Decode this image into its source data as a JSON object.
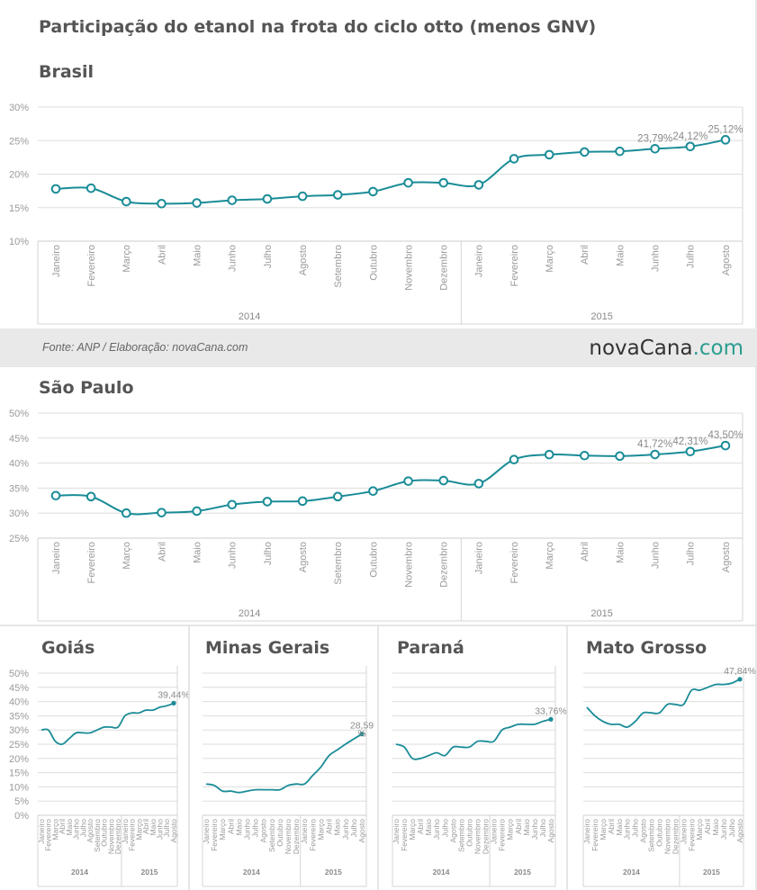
{
  "title": "Participação do etanol na frota do ciclo otto (menos GNV)",
  "source": "Fonte: ANP / Elaboração: novaCana.com",
  "logo": {
    "main": "novaCana",
    "suffix": ".com"
  },
  "colors": {
    "line": "#1a8c97",
    "grid": "#dddddd",
    "band": "#e9e9e9",
    "text": "#555555"
  },
  "chart_data": [
    {
      "type": "line",
      "title": "Brasil",
      "months": [
        "Janeiro",
        "Fevereiro",
        "Março",
        "Abril",
        "Maio",
        "Junho",
        "Julho",
        "Agosto",
        "Setembro",
        "Outubro",
        "Novembro",
        "Dezembro",
        "Janeiro",
        "Fevereiro",
        "Março",
        "Abril",
        "Maio",
        "Junho",
        "Julho",
        "Agosto"
      ],
      "years": [
        "2014",
        "2015"
      ],
      "values": [
        17.8,
        17.9,
        15.9,
        15.6,
        15.7,
        16.1,
        16.3,
        16.7,
        16.9,
        17.4,
        18.7,
        18.7,
        18.4,
        22.3,
        22.9,
        23.3,
        23.4,
        23.79,
        24.12,
        25.12
      ],
      "labels": {
        "17": "23,79%",
        "18": "24,12%",
        "19": "25,12%"
      },
      "yticks": [
        10,
        15,
        20,
        25,
        30
      ],
      "ytick_labels": [
        "10%",
        "15%",
        "20%",
        "25%",
        "30%"
      ],
      "ylim": [
        10,
        30
      ]
    },
    {
      "type": "line",
      "title": "São Paulo",
      "months": [
        "Janeiro",
        "Fevereiro",
        "Março",
        "Abril",
        "Maio",
        "Junho",
        "Julho",
        "Agosto",
        "Setembro",
        "Outubro",
        "Novembro",
        "Dezembro",
        "Janeiro",
        "Fevereiro",
        "Março",
        "Abril",
        "Maio",
        "Junho",
        "Julho",
        "Agosto"
      ],
      "years": [
        "2014",
        "2015"
      ],
      "values": [
        33.5,
        33.3,
        30.0,
        30.1,
        30.4,
        31.7,
        32.3,
        32.4,
        33.3,
        34.4,
        36.4,
        36.5,
        35.9,
        40.7,
        41.7,
        41.5,
        41.4,
        41.72,
        42.31,
        43.5
      ],
      "labels": {
        "17": "41,72%",
        "18": "42,31%",
        "19": "43,50%"
      },
      "yticks": [
        25,
        30,
        35,
        40,
        45,
        50
      ],
      "ytick_labels": [
        "25%",
        "30%",
        "35%",
        "40%",
        "45%",
        "50%"
      ],
      "ylim": [
        25,
        50
      ]
    },
    {
      "type": "line",
      "title": "Goiás",
      "months": [
        "Janeiro",
        "Fevereiro",
        "Março",
        "Abril",
        "Maio",
        "Junho",
        "Julho",
        "Agosto",
        "Setembro",
        "Outubro",
        "Novembro",
        "Dezembro",
        "Janeiro",
        "Fevereiro",
        "Março",
        "Abril",
        "Maio",
        "Junho",
        "Julho",
        "Agosto"
      ],
      "years": [
        "2014",
        "2015"
      ],
      "values": [
        30,
        30,
        26,
        25,
        27,
        29,
        29,
        29,
        30,
        31,
        31,
        31,
        35,
        36,
        36,
        37,
        37,
        38,
        38.5,
        39.44
      ],
      "labels": {
        "19": "39,44%"
      },
      "yticks": [
        0,
        5,
        10,
        15,
        20,
        25,
        30,
        35,
        40,
        45,
        50
      ],
      "ytick_labels": [
        "0%",
        "5%",
        "10%",
        "15%",
        "20%",
        "25%",
        "30%",
        "35%",
        "40%",
        "45%",
        "50%"
      ],
      "ylim": [
        0,
        50
      ]
    },
    {
      "type": "line",
      "title": "Minas Gerais",
      "months": [
        "Janeiro",
        "Fevereiro",
        "Março",
        "Abril",
        "Maio",
        "Junho",
        "Julho",
        "Agosto",
        "Setembro",
        "Outubro",
        "Novembro",
        "Dezembro",
        "Janeiro",
        "Fevereiro",
        "Março",
        "Abril",
        "Maio",
        "Junho",
        "Julho",
        "Agosto"
      ],
      "years": [
        "2014",
        "2015"
      ],
      "values": [
        11,
        10.5,
        8.5,
        8.5,
        8,
        8.5,
        9,
        9,
        9,
        9,
        10.5,
        11,
        11,
        14,
        17,
        21,
        23,
        25,
        26.8,
        28.59
      ],
      "labels": {
        "19": "28,59"
      },
      "label_extra": "%",
      "yticks": [],
      "ylim": [
        0,
        50
      ]
    },
    {
      "type": "line",
      "title": "Paraná",
      "months": [
        "Janeiro",
        "Fevereiro",
        "Março",
        "Abril",
        "Maio",
        "Junho",
        "Julho",
        "Agosto",
        "Setembro",
        "Outubro",
        "Novembro",
        "Dezembro",
        "Janeiro",
        "Fevereiro",
        "Março",
        "Abril",
        "Maio",
        "Junho",
        "Julho",
        "Agosto"
      ],
      "years": [
        "2014",
        "2015"
      ],
      "values": [
        25,
        24,
        20,
        20,
        21,
        22,
        21,
        24,
        24,
        24,
        26,
        26,
        26,
        30,
        31,
        32,
        32,
        32,
        33,
        33.76
      ],
      "labels": {
        "19": "33,76%"
      },
      "yticks": [],
      "ylim": [
        0,
        50
      ]
    },
    {
      "type": "line",
      "title": "Mato Grosso",
      "months": [
        "Janeiro",
        "Fevereiro",
        "Março",
        "Abril",
        "Maio",
        "Junho",
        "Julho",
        "Agosto",
        "Setembro",
        "Outubro",
        "Novembro",
        "Dezembro",
        "Janeiro",
        "Fevereiro",
        "Março",
        "Abril",
        "Maio",
        "Junho",
        "Julho",
        "Agosto"
      ],
      "years": [
        "2014",
        "2015"
      ],
      "values": [
        38,
        35,
        33,
        32,
        32,
        31,
        33,
        36,
        36,
        36,
        39,
        39,
        39,
        44,
        44,
        45,
        46,
        46,
        46.5,
        47.84
      ],
      "labels": {
        "19": "47,84%"
      },
      "yticks": [],
      "ylim": [
        0,
        50
      ]
    }
  ]
}
